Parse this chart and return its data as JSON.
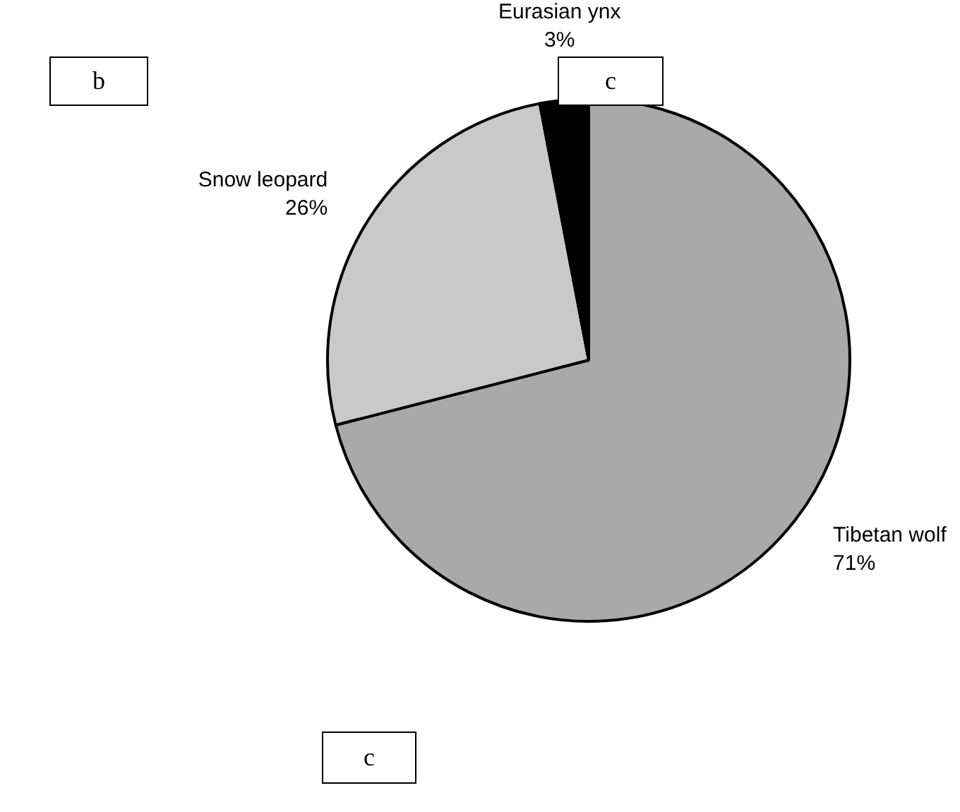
{
  "chart_data": {
    "type": "pie",
    "categories": [
      "Tibetan wolf",
      "Snow leopard",
      "Eurasian ynx"
    ],
    "values": [
      71,
      26,
      3
    ],
    "value_labels": [
      "71%",
      "26%",
      "3%"
    ],
    "colors": [
      "#a9a9a9",
      "#c9c9c9",
      "#000000"
    ],
    "annotations": [
      "b",
      "c",
      "c"
    ],
    "legend": false
  }
}
